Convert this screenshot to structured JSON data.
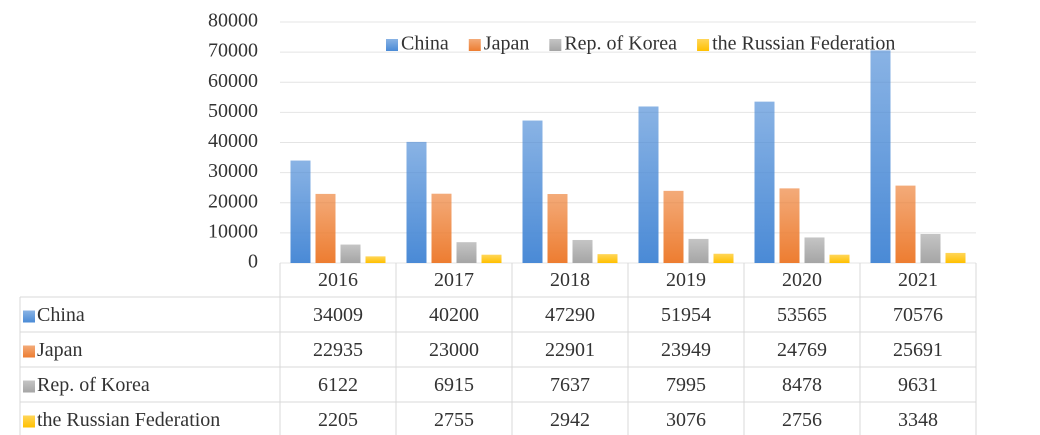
{
  "chart_data": {
    "type": "bar",
    "categories": [
      "2016",
      "2017",
      "2018",
      "2019",
      "2020",
      "2021"
    ],
    "series": [
      {
        "name": "China",
        "color": "#4a8ad6",
        "values": [
          34009,
          40200,
          47290,
          51954,
          53565,
          70576
        ]
      },
      {
        "name": "Japan",
        "color": "#ed7d31",
        "values": [
          22935,
          23000,
          22901,
          23949,
          24769,
          25691
        ]
      },
      {
        "name": "Rep. of Korea",
        "color": "#a5a5a5",
        "values": [
          6122,
          6915,
          7637,
          7995,
          8478,
          9631
        ]
      },
      {
        "name": "the Russian Federation",
        "color": "#ffc000",
        "values": [
          2205,
          2755,
          2942,
          3076,
          2756,
          3348
        ]
      }
    ],
    "ylim": [
      0,
      80000
    ],
    "yticks": [
      0,
      10000,
      20000,
      30000,
      40000,
      50000,
      60000,
      70000,
      80000
    ],
    "grid": true,
    "legend": "top",
    "data_table": true
  }
}
